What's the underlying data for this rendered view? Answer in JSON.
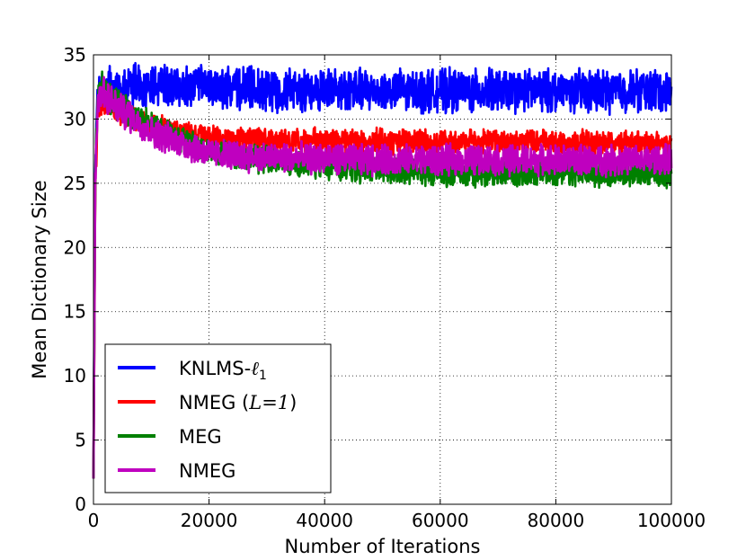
{
  "chart_data": {
    "type": "line",
    "title": "",
    "xlabel": "Number of Iterations",
    "ylabel": "Mean Dictionary Size",
    "xlim": [
      0,
      100000
    ],
    "ylim": [
      0,
      35
    ],
    "xticks": [
      0,
      20000,
      40000,
      60000,
      80000,
      100000
    ],
    "xtick_labels": [
      "0",
      "20000",
      "40000",
      "60000",
      "80000",
      "100000"
    ],
    "yticks": [
      0,
      5,
      10,
      15,
      20,
      25,
      30,
      35
    ],
    "ytick_labels": [
      "0",
      "5",
      "10",
      "15",
      "20",
      "25",
      "30",
      "35"
    ],
    "grid": true,
    "legend_position": "lower-left",
    "series": [
      {
        "name": "KNLMS-ℓ1",
        "label_main": "KNLMS-",
        "label_math": "ℓ",
        "label_sub": "1",
        "color": "#0000ff",
        "x": [
          0,
          300,
          700,
          1500,
          3000,
          10000,
          20000,
          30000,
          40000,
          50000,
          60000,
          70000,
          80000,
          90000,
          100000
        ],
        "mean": [
          2,
          26,
          31.5,
          32.5,
          32.5,
          32.5,
          32.5,
          32.3,
          32.3,
          32.2,
          32.2,
          32.2,
          32.2,
          32.2,
          32.2
        ],
        "noise": [
          0,
          1.0,
          1.2,
          1.3,
          1.4,
          1.4,
          1.4,
          1.4,
          1.4,
          1.4,
          1.4,
          1.4,
          1.4,
          1.4,
          1.4
        ]
      },
      {
        "name": "NMEG (L=1)",
        "label_main": "NMEG (",
        "label_math": "L=1",
        "label_end": ")",
        "color": "#ff0000",
        "x": [
          0,
          300,
          700,
          1500,
          3000,
          10000,
          20000,
          30000,
          40000,
          50000,
          60000,
          70000,
          80000,
          90000,
          100000
        ],
        "mean": [
          2,
          24,
          30.5,
          31.5,
          31,
          29.5,
          28.6,
          28.4,
          28.3,
          28.3,
          28.2,
          28.2,
          28.2,
          28.1,
          28.1
        ],
        "noise": [
          0,
          1.0,
          1.0,
          0.9,
          0.9,
          0.8,
          0.8,
          0.8,
          0.8,
          0.8,
          0.8,
          0.8,
          0.8,
          0.8,
          0.8
        ]
      },
      {
        "name": "MEG",
        "label_main": "MEG",
        "color": "#008000",
        "x": [
          0,
          300,
          700,
          1500,
          3000,
          10000,
          20000,
          30000,
          40000,
          50000,
          60000,
          70000,
          80000,
          90000,
          100000
        ],
        "mean": [
          2,
          25,
          31.5,
          32.5,
          31.5,
          29.5,
          27.5,
          26.8,
          26.3,
          26.0,
          25.8,
          25.8,
          25.8,
          25.8,
          25.8
        ],
        "noise": [
          0,
          1.0,
          1.0,
          1.0,
          1.0,
          0.9,
          0.9,
          0.9,
          0.9,
          0.9,
          0.9,
          0.9,
          0.9,
          0.9,
          0.9
        ]
      },
      {
        "name": "NMEG",
        "label_main": "NMEG",
        "color": "#bf00bf",
        "x": [
          0,
          300,
          700,
          1500,
          3000,
          10000,
          20000,
          30000,
          40000,
          50000,
          60000,
          70000,
          80000,
          90000,
          100000
        ],
        "mean": [
          2,
          25,
          31.5,
          32.2,
          31.3,
          29,
          27.3,
          27.0,
          26.9,
          26.8,
          26.8,
          26.8,
          26.8,
          26.8,
          26.8
        ],
        "noise": [
          0,
          1.0,
          1.1,
          1.1,
          1.1,
          1.0,
          1.0,
          1.0,
          1.0,
          1.0,
          1.0,
          1.0,
          1.0,
          1.0,
          1.0
        ]
      }
    ]
  }
}
